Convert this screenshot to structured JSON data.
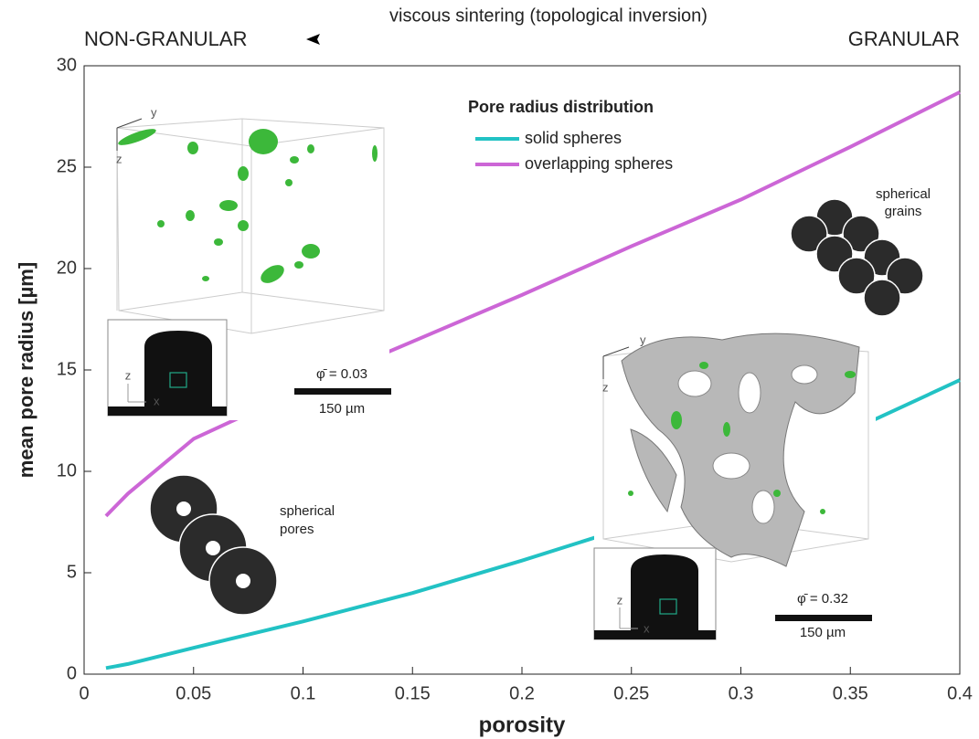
{
  "chart_data": {
    "type": "line",
    "arrow_label": "viscous sintering (topological inversion)",
    "left_label": "NON-GRANULAR",
    "right_label": "GRANULAR",
    "xlabel": "porosity",
    "ylabel": "mean pore radius [µm]",
    "x": [
      0.01,
      0.02,
      0.05,
      0.1,
      0.15,
      0.2,
      0.25,
      0.3,
      0.35,
      0.4
    ],
    "series": [
      {
        "name": "solid spheres",
        "color": "#22c2c4",
        "values": [
          0.3,
          0.5,
          1.3,
          2.6,
          4.0,
          5.6,
          7.3,
          9.5,
          12.0,
          14.5
        ]
      },
      {
        "name": "overlapping spheres",
        "color": "#cc66d6",
        "values": [
          7.8,
          8.9,
          11.6,
          14.1,
          16.4,
          18.7,
          21.1,
          23.4,
          26.0,
          28.7
        ]
      }
    ],
    "legend_title": "Pore radius distribution",
    "legend": "upper-center",
    "xlim": [
      0,
      0.4
    ],
    "ylim": [
      0,
      30
    ],
    "xticks": [
      0,
      0.05,
      0.1,
      0.15,
      0.2,
      0.25,
      0.3,
      0.35,
      0.4
    ],
    "yticks": [
      0,
      5,
      10,
      15,
      20,
      25,
      30
    ],
    "grain_label": [
      "spherical",
      "grains"
    ],
    "pore_label": [
      "spherical",
      "pores"
    ],
    "insets": [
      {
        "porosity_label": "φ̄ = 0.03",
        "scale_label": "150 µm",
        "axis_labels": [
          "x",
          "y",
          "z"
        ]
      },
      {
        "porosity_label": "φ̄ = 0.32",
        "scale_label": "150 µm",
        "axis_labels": [
          "x",
          "y",
          "z"
        ]
      }
    ]
  }
}
